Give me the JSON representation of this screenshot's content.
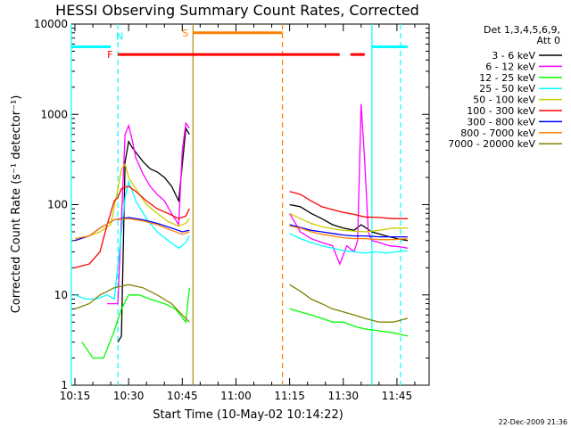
{
  "chart_data": {
    "type": "line",
    "title": "HESSI Observing Summary Count Rates, Corrected",
    "xlabel": "Start Time (10-May-02 10:14:22)",
    "ylabel": "Corrected Count Rate (s⁻¹ detector⁻¹)",
    "y_scale": "log",
    "ylim": [
      1,
      10000
    ],
    "xlim": [
      "10:14",
      "11:54"
    ],
    "x_ticks": [
      "10:15",
      "10:30",
      "10:45",
      "11:00",
      "11:15",
      "11:30",
      "11:45"
    ],
    "y_ticks": [
      "1",
      "10",
      "100",
      "1000",
      "10000"
    ],
    "grid": false,
    "legend_position": "right",
    "legend_title": [
      "Det 1,3,4,5,6,9,",
      "Att 0"
    ],
    "footer_date": "22-Dec-2009 21:36",
    "data_gap": [
      "10:48",
      "11:14"
    ],
    "series": [
      {
        "name": "3 - 6 keV",
        "color": "#000000",
        "x": [
          "10:27",
          "10:28",
          "10:29",
          "10:30",
          "10:31",
          "10:32",
          "10:34",
          "10:36",
          "10:38",
          "10:40",
          "10:42",
          "10:44",
          "10:46",
          "10:47",
          "11:15",
          "11:18",
          "11:21",
          "11:24",
          "11:27",
          "11:30",
          "11:33",
          "11:35",
          "11:38",
          "11:42",
          "11:45",
          "11:48"
        ],
        "y": [
          3,
          3.5,
          300,
          500,
          430,
          380,
          300,
          250,
          230,
          200,
          160,
          110,
          700,
          600,
          100,
          95,
          80,
          70,
          60,
          55,
          52,
          60,
          50,
          45,
          42,
          40
        ]
      },
      {
        "name": "6 - 12 keV",
        "color": "#ff00ff",
        "x": [
          "10:24",
          "10:27",
          "10:29",
          "10:30",
          "10:31",
          "10:32",
          "10:34",
          "10:36",
          "10:38",
          "10:40",
          "10:42",
          "10:44",
          "10:45",
          "10:46",
          "10:47",
          "11:15",
          "11:18",
          "11:21",
          "11:24",
          "11:27",
          "11:29",
          "11:31",
          "11:33",
          "11:34",
          "11:35",
          "11:36",
          "11:37",
          "11:38",
          "11:40",
          "11:43",
          "11:46",
          "11:48"
        ],
        "y": [
          8,
          8,
          600,
          750,
          520,
          330,
          220,
          160,
          130,
          110,
          80,
          60,
          400,
          800,
          700,
          80,
          50,
          42,
          38,
          35,
          22,
          35,
          30,
          40,
          1300,
          300,
          50,
          40,
          38,
          35,
          34,
          33
        ]
      },
      {
        "name": "12 - 25 keV",
        "color": "#00ff00",
        "x": [
          "10:17",
          "10:20",
          "10:23",
          "10:26",
          "10:28",
          "10:30",
          "10:33",
          "10:36",
          "10:40",
          "10:43",
          "10:46",
          "10:47",
          "11:15",
          "11:18",
          "11:21",
          "11:24",
          "11:27",
          "11:30",
          "11:33",
          "11:36",
          "11:40",
          "11:44",
          "11:48"
        ],
        "y": [
          3,
          2,
          2,
          4,
          7,
          10,
          10,
          9,
          8,
          7,
          5,
          12,
          7,
          6.5,
          6,
          5.5,
          5,
          5,
          4.5,
          4.2,
          4,
          3.8,
          3.5
        ]
      },
      {
        "name": "25 - 50 keV",
        "color": "#00ffff",
        "x": [
          "10:15",
          "10:18",
          "10:21",
          "10:24",
          "10:26",
          "10:28",
          "10:29",
          "10:30",
          "10:32",
          "10:35",
          "10:38",
          "10:41",
          "10:44",
          "10:46",
          "10:47",
          "11:15",
          "11:18",
          "11:21",
          "11:24",
          "11:27",
          "11:30",
          "11:33",
          "11:36",
          "11:39",
          "11:42",
          "11:45",
          "11:48"
        ],
        "y": [
          10,
          9,
          9,
          10,
          9,
          50,
          120,
          180,
          110,
          70,
          50,
          40,
          33,
          38,
          45,
          48,
          42,
          38,
          35,
          33,
          31,
          30,
          29,
          30,
          29,
          30,
          31
        ]
      },
      {
        "name": "50 - 100 keV",
        "color": "#cccc00",
        "x": [
          "10:15",
          "10:19",
          "10:22",
          "10:25",
          "10:27",
          "10:28",
          "10:29",
          "10:30",
          "10:32",
          "10:35",
          "10:38",
          "10:41",
          "10:44",
          "10:46",
          "10:47",
          "11:15",
          "11:18",
          "11:21",
          "11:24",
          "11:27",
          "11:30",
          "11:33",
          "11:36",
          "11:40",
          "11:44",
          "11:48"
        ],
        "y": [
          40,
          45,
          50,
          60,
          150,
          250,
          280,
          200,
          150,
          100,
          80,
          65,
          58,
          62,
          70,
          80,
          70,
          62,
          57,
          54,
          52,
          51,
          50,
          52,
          55,
          55
        ]
      },
      {
        "name": "100 - 300 keV",
        "color": "#ff0000",
        "x": [
          "10:15",
          "10:19",
          "10:22",
          "10:24",
          "10:26",
          "10:27",
          "10:28",
          "10:30",
          "10:32",
          "10:35",
          "10:38",
          "10:41",
          "10:44",
          "10:46",
          "10:47",
          "11:15",
          "11:18",
          "11:21",
          "11:24",
          "11:27",
          "11:30",
          "11:33",
          "11:36",
          "11:40",
          "11:44",
          "11:48"
        ],
        "y": [
          20,
          22,
          30,
          60,
          110,
          120,
          150,
          160,
          140,
          110,
          90,
          80,
          70,
          75,
          90,
          140,
          130,
          110,
          95,
          88,
          82,
          78,
          73,
          72,
          70,
          70
        ]
      },
      {
        "name": "300 - 800 keV",
        "color": "#0000ff",
        "x": [
          "10:15",
          "10:19",
          "10:22",
          "10:26",
          "10:30",
          "10:34",
          "10:38",
          "10:42",
          "10:45",
          "10:47",
          "11:15",
          "11:18",
          "11:21",
          "11:24",
          "11:27",
          "11:30",
          "11:33",
          "11:36",
          "11:40",
          "11:44",
          "11:48"
        ],
        "y": [
          40,
          45,
          55,
          68,
          72,
          68,
          62,
          55,
          50,
          52,
          60,
          56,
          52,
          50,
          48,
          46,
          45,
          45,
          44,
          44,
          44
        ]
      },
      {
        "name": "800 - 7000 keV",
        "color": "#ff8000",
        "x": [
          "10:15",
          "10:19",
          "10:22",
          "10:26",
          "10:30",
          "10:34",
          "10:38",
          "10:42",
          "10:45",
          "10:47",
          "11:15",
          "11:18",
          "11:21",
          "11:24",
          "11:27",
          "11:30",
          "11:33",
          "11:36",
          "11:40",
          "11:44",
          "11:48"
        ],
        "y": [
          42,
          45,
          55,
          68,
          70,
          66,
          60,
          52,
          47,
          50,
          58,
          55,
          50,
          47,
          45,
          43,
          42,
          42,
          41,
          41,
          42
        ]
      },
      {
        "name": "7000 - 20000 keV",
        "color": "#808000",
        "x": [
          "10:15",
          "10:19",
          "10:22",
          "10:26",
          "10:30",
          "10:34",
          "10:38",
          "10:42",
          "10:45",
          "10:47",
          "11:15",
          "11:18",
          "11:21",
          "11:24",
          "11:27",
          "11:30",
          "11:33",
          "11:36",
          "11:40",
          "11:44",
          "11:48"
        ],
        "y": [
          7,
          8,
          10,
          12,
          13,
          12,
          10,
          8,
          6,
          5,
          13,
          11,
          9,
          8,
          7,
          6.5,
          6,
          5.5,
          5,
          5,
          5.5
        ]
      }
    ],
    "flag_bars": [
      {
        "label": "N",
        "color": "#00ffff",
        "segments": [
          [
            "10:14",
            "10:25"
          ],
          [
            "11:38",
            "11:48"
          ]
        ],
        "level": 5600
      },
      {
        "label": "F",
        "color": "#ff0000",
        "segments": [
          [
            "10:27",
            "11:29"
          ],
          [
            "11:32",
            "11:36"
          ]
        ],
        "level": 4600
      },
      {
        "label": "S",
        "color": "#ff8000",
        "segments": [
          [
            "10:48",
            "11:13"
          ]
        ],
        "level": 8000
      }
    ],
    "vertical_markers": [
      {
        "time": "10:14",
        "color": "#00ffff",
        "style": "solid"
      },
      {
        "time": "10:27",
        "color": "#00ffff",
        "style": "dashed"
      },
      {
        "time": "10:48",
        "color": "#b8860b",
        "style": "solid"
      },
      {
        "time": "11:13",
        "color": "#ff8000",
        "style": "dashed"
      },
      {
        "time": "11:38",
        "color": "#00ffff",
        "style": "solid"
      },
      {
        "time": "11:46",
        "color": "#00ffff",
        "style": "dashed"
      }
    ]
  }
}
